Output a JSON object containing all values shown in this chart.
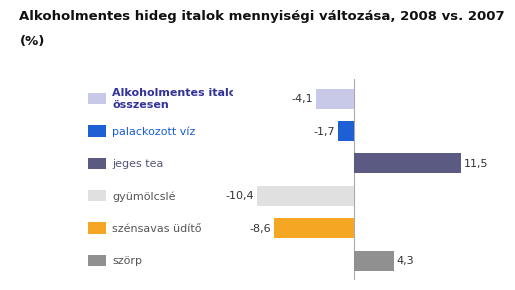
{
  "title_line1": "Alkoholmentes hideg italok mennyiségi változása, 2008 vs. 2007",
  "title_line2": "(%)",
  "categories": [
    "Alkoholmentes italok\nösszesen",
    "palackozott víz",
    "jeges tea",
    "gyümölcslé",
    "szénsavas üdítő",
    "szörp"
  ],
  "values": [
    -4.1,
    -1.7,
    11.5,
    -10.4,
    -8.6,
    4.3
  ],
  "value_labels": [
    "-4,1",
    "-1,7",
    "11,5",
    "-10,4",
    "-8,6",
    "4,3"
  ],
  "colors": [
    "#c8c8e8",
    "#1f5fd4",
    "#5a5a82",
    "#e0e0e0",
    "#f5a623",
    "#909090"
  ],
  "legend_square_colors": [
    "#c8c8e8",
    "#1f5fd4",
    "#5a5a82",
    "#e0e0e0",
    "#f5a623",
    "#909090"
  ],
  "background_color": "#ffffff",
  "title_fontsize": 9.5,
  "label_fontsize": 8,
  "value_fontsize": 8,
  "bar_xlim": [
    -13,
    14
  ],
  "bar_zero": 0
}
